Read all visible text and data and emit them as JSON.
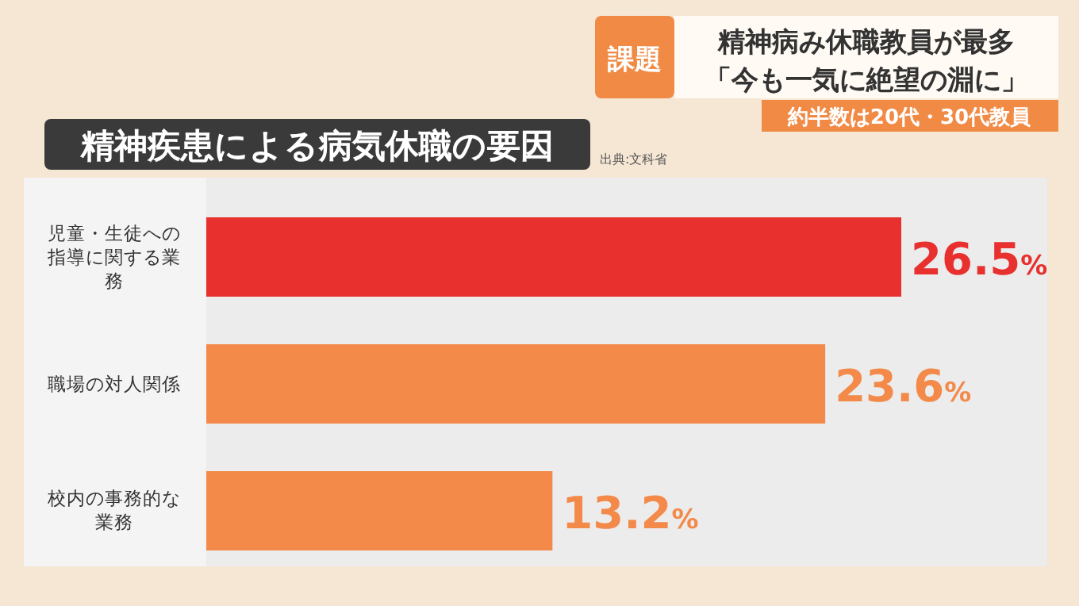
{
  "chart_data": {
    "type": "bar",
    "orientation": "horizontal",
    "title": "精神疾患による病気休職の要因",
    "categories": [
      "児童・生徒への指導に関する業務",
      "職場の対人関係",
      "校内の事務的な業務"
    ],
    "values": [
      26.5,
      23.6,
      13.2
    ],
    "colors": [
      "#e8302e",
      "#f38a4a",
      "#f38a4a"
    ],
    "value_labels": [
      "26.5%",
      "23.6%",
      "13.2%"
    ],
    "annotations": [
      "出典:文科省",
      "課題",
      "精神病み休職教員が最多",
      "「今も一気に絶望の淵に」",
      "約半数は20代・30代教員"
    ]
  }
}
